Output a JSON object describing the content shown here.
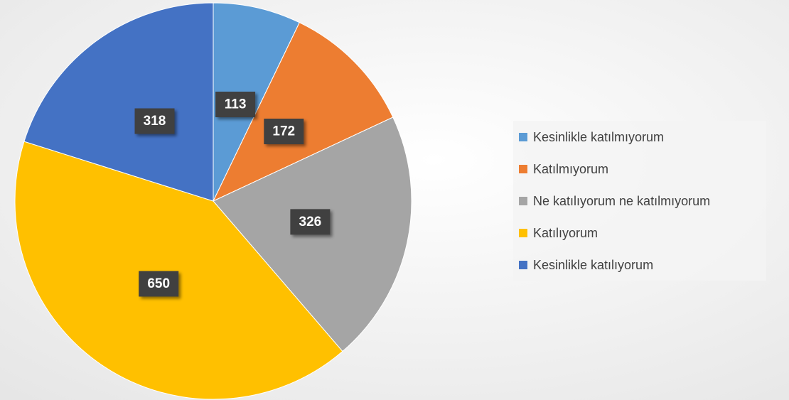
{
  "chart_data": {
    "type": "pie",
    "categories": [
      "Kesinlikle katılmıyorum",
      "Katılmıyorum",
      "Ne katılıyorum ne katılmıyorum",
      "Katılıyorum",
      "Kesinlikle katılıyorum"
    ],
    "values": [
      113,
      172,
      326,
      650,
      318
    ],
    "colors": [
      "#5b9bd5",
      "#ed7d31",
      "#a5a5a5",
      "#ffc000",
      "#4472c4"
    ],
    "legend": "right"
  }
}
